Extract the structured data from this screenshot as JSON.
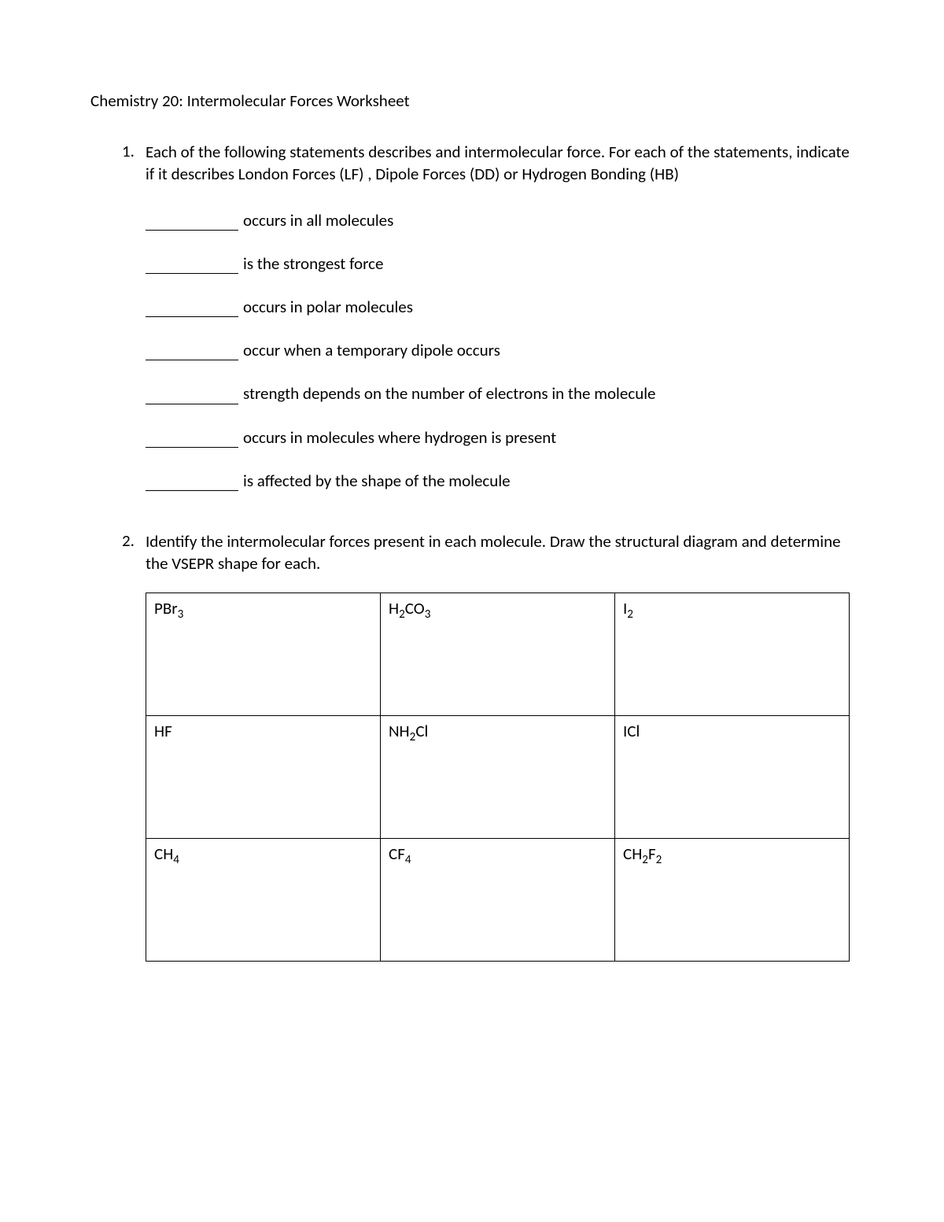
{
  "title": "Chemistry 20: Intermolecular Forces Worksheet",
  "q1": {
    "num": "1.",
    "text": "Each of the following statements describes and intermolecular force. For each of the statements, indicate if it describes London Forces (LF) , Dipole Forces (DD) or Hydrogen Bonding (HB)",
    "items": [
      "occurs in all molecules",
      "is the strongest force",
      "occurs in polar molecules",
      "occur when a temporary dipole occurs",
      "strength depends on the number of electrons in the molecule",
      "occurs in molecules where hydrogen is present",
      "is affected by the shape of the molecule"
    ]
  },
  "q2": {
    "num": "2.",
    "text": "Identify the intermolecular forces present in each molecule. Draw the structural diagram and determine the VSEPR shape for each.",
    "cells": [
      [
        "PBr<sub>3</sub>",
        "H<sub>2</sub>CO<sub>3</sub>",
        "I<sub>2</sub>"
      ],
      [
        "HF",
        "NH<sub>2</sub>Cl",
        "ICl"
      ],
      [
        "CH<sub>4</sub>",
        "CF<sub>4</sub>",
        "CH<sub>2</sub>F<sub>2</sub>"
      ]
    ]
  }
}
